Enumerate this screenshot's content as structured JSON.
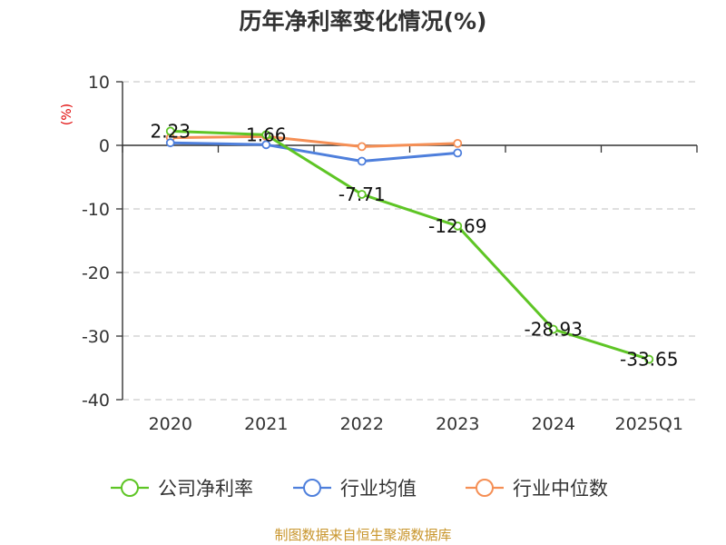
{
  "chart_data": {
    "type": "line",
    "title": "历年净利率变化情况(%)",
    "ylabel": "(%)",
    "xlabel": "",
    "categories": [
      "2020",
      "2021",
      "2022",
      "2023",
      "2024",
      "2025Q1"
    ],
    "yticks": [
      "10",
      "0",
      "-10",
      "-20",
      "-30",
      "-40"
    ],
    "ylim": [
      -40,
      10
    ],
    "grid": true,
    "legend_position": "bottom",
    "series": [
      {
        "name": "公司净利率",
        "color": "#5ec525",
        "values": [
          2.23,
          1.66,
          -7.71,
          -12.69,
          -28.93,
          -33.65
        ],
        "labels": [
          "2.23",
          "1.66",
          "-7.71",
          "-12.69",
          "-28.93",
          "-33.65"
        ]
      },
      {
        "name": "行业均值",
        "color": "#4e7fdc",
        "values": [
          0.4,
          0.1,
          -2.5,
          -1.2,
          null,
          null
        ]
      },
      {
        "name": "行业中位数",
        "color": "#f58f55",
        "values": [
          1.2,
          1.4,
          -0.2,
          0.3,
          null,
          null
        ]
      }
    ]
  },
  "footer": "制图数据来自恒生聚源数据库",
  "colors": {
    "axis": "#333333",
    "grid": "#cccccc",
    "ylabel": "#e00000",
    "footer": "#c8952b"
  }
}
